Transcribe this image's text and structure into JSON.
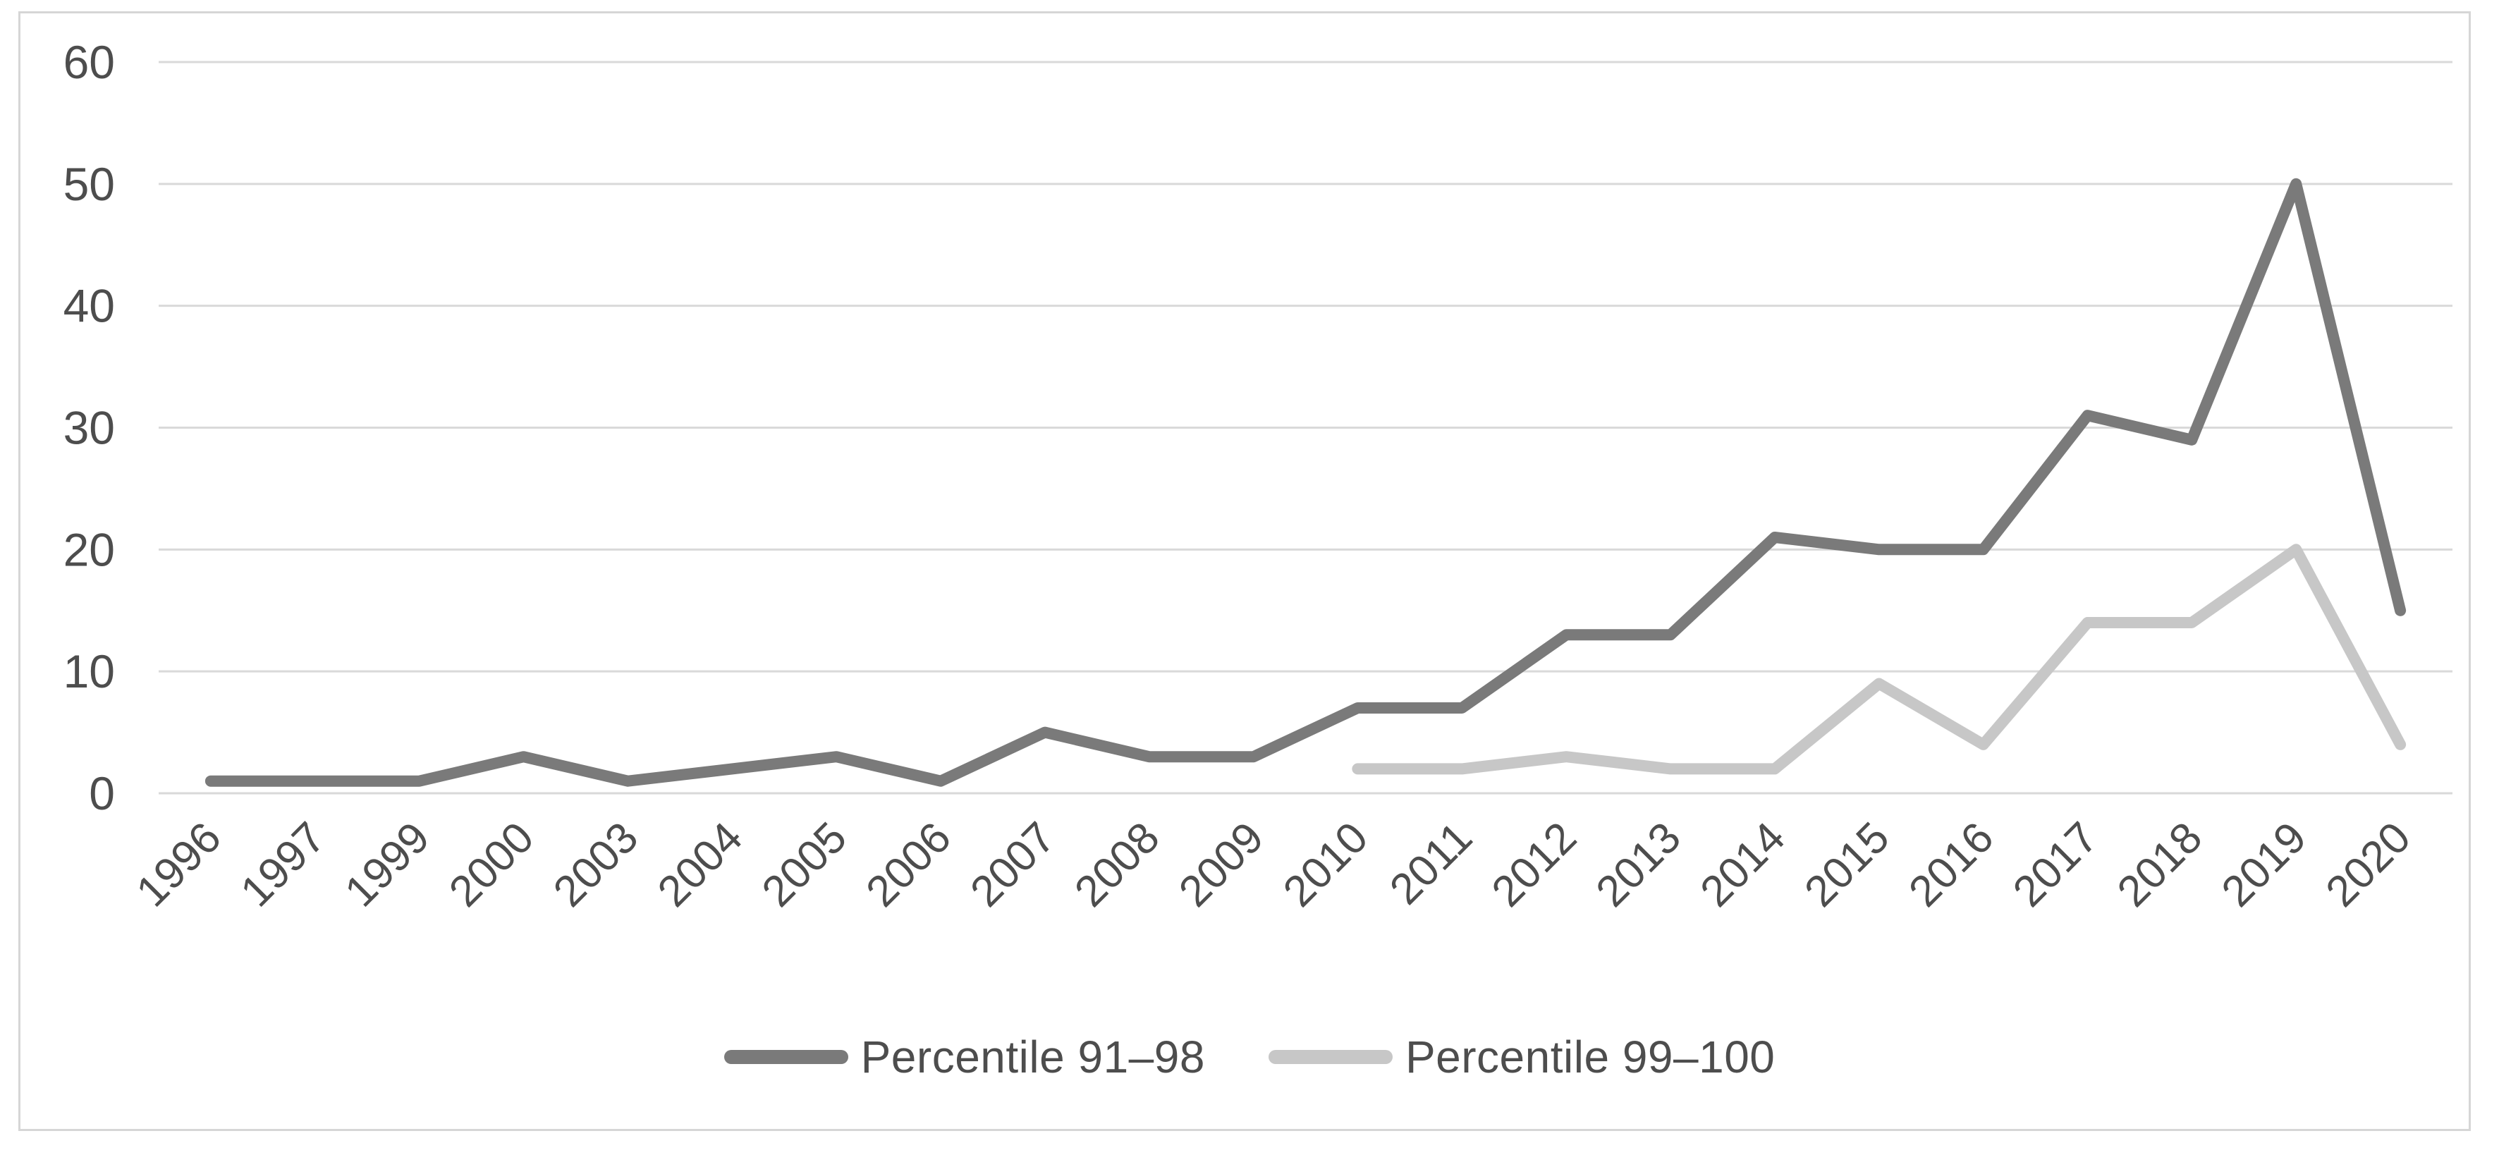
{
  "chart_data": {
    "type": "line",
    "categories": [
      "1996",
      "1997",
      "1999",
      "2000",
      "2003",
      "2004",
      "2005",
      "2006",
      "2007",
      "2008",
      "2009",
      "2010",
      "2011",
      "2012",
      "2013",
      "2014",
      "2015",
      "2016",
      "2017",
      "2018",
      "2019",
      "2020"
    ],
    "series": [
      {
        "name": "Percentile 91–98",
        "color": "#7a7a7a",
        "values": [
          1,
          1,
          1,
          3,
          1,
          2,
          3,
          1,
          5,
          3,
          3,
          7,
          7,
          13,
          13,
          21,
          20,
          20,
          31,
          29,
          50,
          15
        ]
      },
      {
        "name": "Percentile 99–100",
        "color": "#c7c7c7",
        "values": [
          null,
          null,
          null,
          null,
          null,
          null,
          null,
          null,
          null,
          null,
          null,
          2,
          2,
          3,
          2,
          2,
          9,
          4,
          14,
          14,
          20,
          4
        ]
      }
    ],
    "title": "",
    "xlabel": "",
    "ylabel": "",
    "ylim": [
      0,
      60
    ],
    "yticks": [
      0,
      10,
      20,
      30,
      40,
      50,
      60
    ],
    "grid": "horizontal",
    "gridline_color": "#d9d9d9",
    "axis_label_color": "#4d4d4d",
    "plot_border_color": "#d6d6d6",
    "legend_position": "bottom",
    "line_width": 16
  }
}
